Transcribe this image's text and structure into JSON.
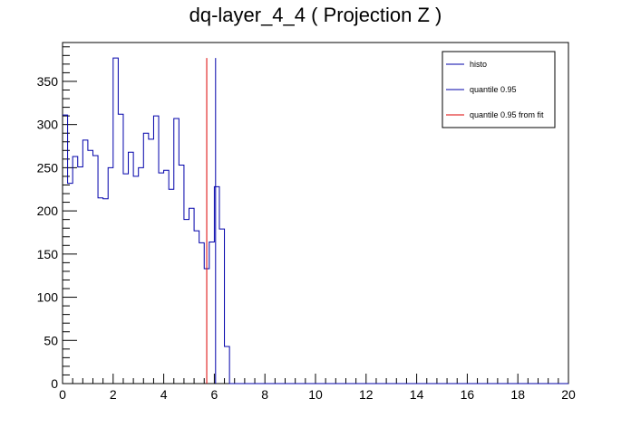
{
  "chart_data": {
    "type": "line",
    "title": "dq-layer_4_4 ( Projection Z )",
    "xlim": [
      0,
      20
    ],
    "ylim": [
      0,
      395
    ],
    "x_ticks": [
      0,
      2,
      4,
      6,
      8,
      10,
      12,
      14,
      16,
      18,
      20
    ],
    "y_ticks": [
      0,
      50,
      100,
      150,
      200,
      250,
      300,
      350
    ],
    "grid": false,
    "legend_position": "top-right",
    "bin_width": 0.2,
    "bin_start": 0,
    "histogram": {
      "name": "histo",
      "color": "#0000aa",
      "values": [
        311,
        232,
        263,
        251,
        282,
        270,
        264,
        215,
        214,
        250,
        377,
        312,
        243,
        268,
        240,
        250,
        290,
        283,
        310,
        244,
        247,
        225,
        307,
        253,
        190,
        203,
        177,
        163,
        133,
        164,
        228,
        179,
        43,
        0,
        0,
        0,
        0,
        0,
        0,
        0,
        0,
        0,
        0,
        0,
        0,
        0,
        0,
        0,
        0,
        0,
        0,
        0,
        0,
        0,
        0,
        0,
        0,
        0,
        0,
        0,
        0,
        0,
        0,
        0,
        0,
        0,
        0,
        0,
        0,
        0,
        0,
        0,
        0,
        0,
        0,
        0,
        0,
        0,
        0,
        0,
        0,
        0,
        0,
        0,
        0,
        0,
        0,
        0,
        0,
        0,
        0,
        0,
        0,
        0,
        0,
        0,
        0,
        0,
        0,
        0
      ]
    },
    "vlines": [
      {
        "name": "quantile 0.95",
        "x": 6.05,
        "y_top": 377,
        "color": "#0000aa"
      },
      {
        "name": "quantile 0.95 from fit",
        "x": 5.7,
        "y_top": 377,
        "color": "#dd0000"
      }
    ]
  }
}
